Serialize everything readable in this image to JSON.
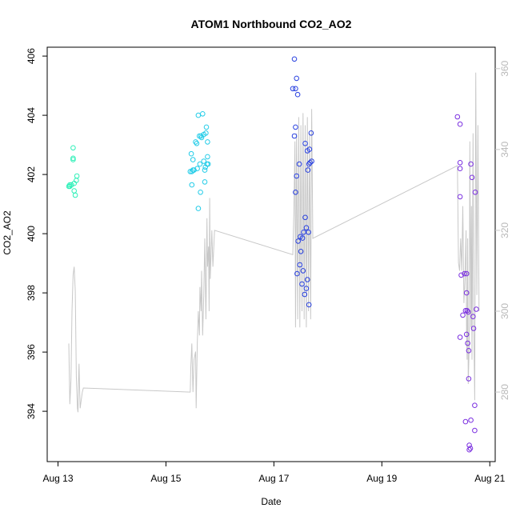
{
  "chart_data": {
    "type": "scatter",
    "title": "ATOM1 Northbound CO2_AO2",
    "xlabel": "Date",
    "ylabel": "CO2_AO2",
    "x_ticks": [
      {
        "label": "Aug 13",
        "day": 13
      },
      {
        "label": "Aug 15",
        "day": 15
      },
      {
        "label": "Aug 17",
        "day": 17
      },
      {
        "label": "Aug 19",
        "day": 19
      },
      {
        "label": "Aug 21",
        "day": 21
      }
    ],
    "xlim_days": [
      12.8,
      21.1
    ],
    "ylim": [
      392.3,
      406.3
    ],
    "y_ticks": [
      394,
      396,
      398,
      400,
      402,
      404,
      406
    ],
    "y2lim": [
      262.8,
      365.3
    ],
    "y2_ticks": [
      280,
      300,
      320,
      340,
      360
    ],
    "y2_color": "#c8c8c8",
    "grid": false,
    "legend": "none",
    "series": [
      {
        "color": "#2ef0b8",
        "points": [
          [
            13.2,
            401.6
          ],
          [
            13.22,
            401.6
          ],
          [
            13.25,
            401.65
          ],
          [
            13.28,
            402.5
          ],
          [
            13.28,
            402.55
          ],
          [
            13.28,
            402.9
          ],
          [
            13.3,
            401.7
          ],
          [
            13.3,
            401.45
          ],
          [
            13.32,
            401.3
          ],
          [
            13.34,
            401.8
          ],
          [
            13.35,
            401.95
          ],
          [
            13.22,
            401.65
          ]
        ]
      },
      {
        "color": "#22cce8",
        "points": [
          [
            15.45,
            402.1
          ],
          [
            15.47,
            402.7
          ],
          [
            15.48,
            402.1
          ],
          [
            15.48,
            401.65
          ],
          [
            15.5,
            402.5
          ],
          [
            15.5,
            402.15
          ],
          [
            15.52,
            402.15
          ],
          [
            15.55,
            403.1
          ],
          [
            15.57,
            403.05
          ],
          [
            15.58,
            402.2
          ],
          [
            15.6,
            400.85
          ],
          [
            15.6,
            404
          ],
          [
            15.62,
            403.3
          ],
          [
            15.63,
            402.35
          ],
          [
            15.64,
            401.4
          ],
          [
            15.65,
            403.3
          ],
          [
            15.66,
            403.25
          ],
          [
            15.68,
            404.05
          ],
          [
            15.7,
            403.35
          ],
          [
            15.7,
            402.45
          ],
          [
            15.72,
            402.15
          ],
          [
            15.72,
            401.75
          ],
          [
            15.73,
            402.25
          ],
          [
            15.74,
            403.4
          ],
          [
            15.75,
            403.6
          ],
          [
            15.76,
            402.35
          ],
          [
            15.77,
            402.6
          ],
          [
            15.77,
            403.1
          ],
          [
            15.78,
            402.35
          ]
        ]
      },
      {
        "color": "#2840e0",
        "points": [
          [
            17.35,
            404.9
          ],
          [
            17.38,
            405.9
          ],
          [
            17.4,
            404.9
          ],
          [
            17.42,
            405.25
          ],
          [
            17.44,
            404.7
          ],
          [
            17.38,
            403.3
          ],
          [
            17.4,
            403.6
          ],
          [
            17.42,
            401.95
          ],
          [
            17.4,
            401.4
          ],
          [
            17.43,
            398.65
          ],
          [
            17.45,
            399.75
          ],
          [
            17.47,
            402.35
          ],
          [
            17.48,
            398.95
          ],
          [
            17.49,
            399.9
          ],
          [
            17.5,
            399.4
          ],
          [
            17.52,
            398.3
          ],
          [
            17.53,
            399.85
          ],
          [
            17.54,
            398.75
          ],
          [
            17.55,
            400.05
          ],
          [
            17.57,
            397.95
          ],
          [
            17.58,
            400.55
          ],
          [
            17.58,
            403.05
          ],
          [
            17.6,
            400.2
          ],
          [
            17.6,
            398.15
          ],
          [
            17.62,
            402.8
          ],
          [
            17.62,
            398.45
          ],
          [
            17.63,
            402.15
          ],
          [
            17.64,
            400.05
          ],
          [
            17.65,
            402.35
          ],
          [
            17.65,
            397.6
          ],
          [
            17.66,
            402.85
          ],
          [
            17.67,
            402.4
          ],
          [
            17.69,
            403.4
          ],
          [
            17.7,
            402.45
          ]
        ]
      },
      {
        "color": "#7a2ee0",
        "points": [
          [
            20.4,
            403.95
          ],
          [
            20.45,
            403.7
          ],
          [
            20.45,
            402.4
          ],
          [
            20.45,
            402.2
          ],
          [
            20.45,
            401.25
          ],
          [
            20.45,
            396.5
          ],
          [
            20.47,
            398.6
          ],
          [
            20.5,
            397.25
          ],
          [
            20.53,
            398.65
          ],
          [
            20.55,
            397.4
          ],
          [
            20.55,
            393.65
          ],
          [
            20.57,
            396.6
          ],
          [
            20.57,
            398.65
          ],
          [
            20.57,
            398
          ],
          [
            20.58,
            397.4
          ],
          [
            20.59,
            396.3
          ],
          [
            20.6,
            397.35
          ],
          [
            20.61,
            395.1
          ],
          [
            20.61,
            396.05
          ],
          [
            20.62,
            392.85
          ],
          [
            20.64,
            392.75
          ],
          [
            20.65,
            393.7
          ],
          [
            20.65,
            402.35
          ],
          [
            20.67,
            401.9
          ],
          [
            20.69,
            397.2
          ],
          [
            20.7,
            396.8
          ],
          [
            20.72,
            393.35
          ],
          [
            20.72,
            394.2
          ],
          [
            20.73,
            401.4
          ],
          [
            20.75,
            397.45
          ],
          [
            20.62,
            392.7
          ]
        ]
      }
    ],
    "secondary_line": {
      "color": "#c8c8c8",
      "values": [
        [
          13.2,
          292
        ],
        [
          13.22,
          277
        ],
        [
          13.24,
          283
        ],
        [
          13.26,
          300
        ],
        [
          13.28,
          309
        ],
        [
          13.3,
          311
        ],
        [
          13.32,
          305
        ],
        [
          13.34,
          284
        ],
        [
          13.36,
          276
        ],
        [
          13.37,
          275
        ],
        [
          13.38,
          282
        ],
        [
          13.39,
          287
        ],
        [
          13.4,
          281
        ],
        [
          13.41,
          276
        ],
        [
          13.43,
          278
        ],
        [
          13.45,
          280
        ],
        [
          13.47,
          281
        ],
        [
          15.45,
          280
        ],
        [
          15.46,
          286
        ],
        [
          15.48,
          292
        ],
        [
          15.5,
          280
        ],
        [
          15.52,
          288
        ],
        [
          15.55,
          290
        ],
        [
          15.56,
          276
        ],
        [
          15.58,
          292
        ],
        [
          15.6,
          300
        ],
        [
          15.62,
          294
        ],
        [
          15.63,
          306
        ],
        [
          15.65,
          300
        ],
        [
          15.66,
          310
        ],
        [
          15.68,
          294
        ],
        [
          15.7,
          304
        ],
        [
          15.72,
          318
        ],
        [
          15.73,
          307
        ],
        [
          15.74,
          298
        ],
        [
          15.76,
          323
        ],
        [
          15.77,
          311
        ],
        [
          15.79,
          316
        ],
        [
          15.8,
          300
        ],
        [
          15.81,
          328
        ],
        [
          15.82,
          308
        ],
        [
          15.85,
          320
        ],
        [
          15.87,
          311
        ],
        [
          15.9,
          320
        ],
        [
          17.35,
          314
        ],
        [
          17.37,
          324
        ],
        [
          17.39,
          342
        ],
        [
          17.4,
          296
        ],
        [
          17.42,
          344
        ],
        [
          17.44,
          298
        ],
        [
          17.46,
          348
        ],
        [
          17.48,
          296
        ],
        [
          17.5,
          346
        ],
        [
          17.52,
          300
        ],
        [
          17.54,
          349
        ],
        [
          17.56,
          298
        ],
        [
          17.58,
          346
        ],
        [
          17.6,
          296
        ],
        [
          17.62,
          348
        ],
        [
          17.64,
          300
        ],
        [
          17.66,
          344
        ],
        [
          17.68,
          298
        ],
        [
          17.7,
          350
        ],
        [
          17.72,
          318
        ],
        [
          20.4,
          336
        ],
        [
          20.42,
          312
        ],
        [
          20.44,
          310
        ],
        [
          20.46,
          318
        ],
        [
          20.48,
          310
        ],
        [
          20.5,
          326
        ],
        [
          20.52,
          302
        ],
        [
          20.54,
          308
        ],
        [
          20.56,
          320
        ],
        [
          20.57,
          294
        ],
        [
          20.58,
          288
        ],
        [
          20.59,
          318
        ],
        [
          20.6,
          282
        ],
        [
          20.62,
          292
        ],
        [
          20.63,
          342
        ],
        [
          20.65,
          296
        ],
        [
          20.66,
          326
        ],
        [
          20.67,
          288
        ],
        [
          20.69,
          344
        ],
        [
          20.7,
          300
        ],
        [
          20.72,
          278
        ],
        [
          20.74,
          359
        ],
        [
          20.76,
          304
        ],
        [
          20.78,
          346
        ],
        [
          20.8,
          300
        ]
      ]
    }
  }
}
